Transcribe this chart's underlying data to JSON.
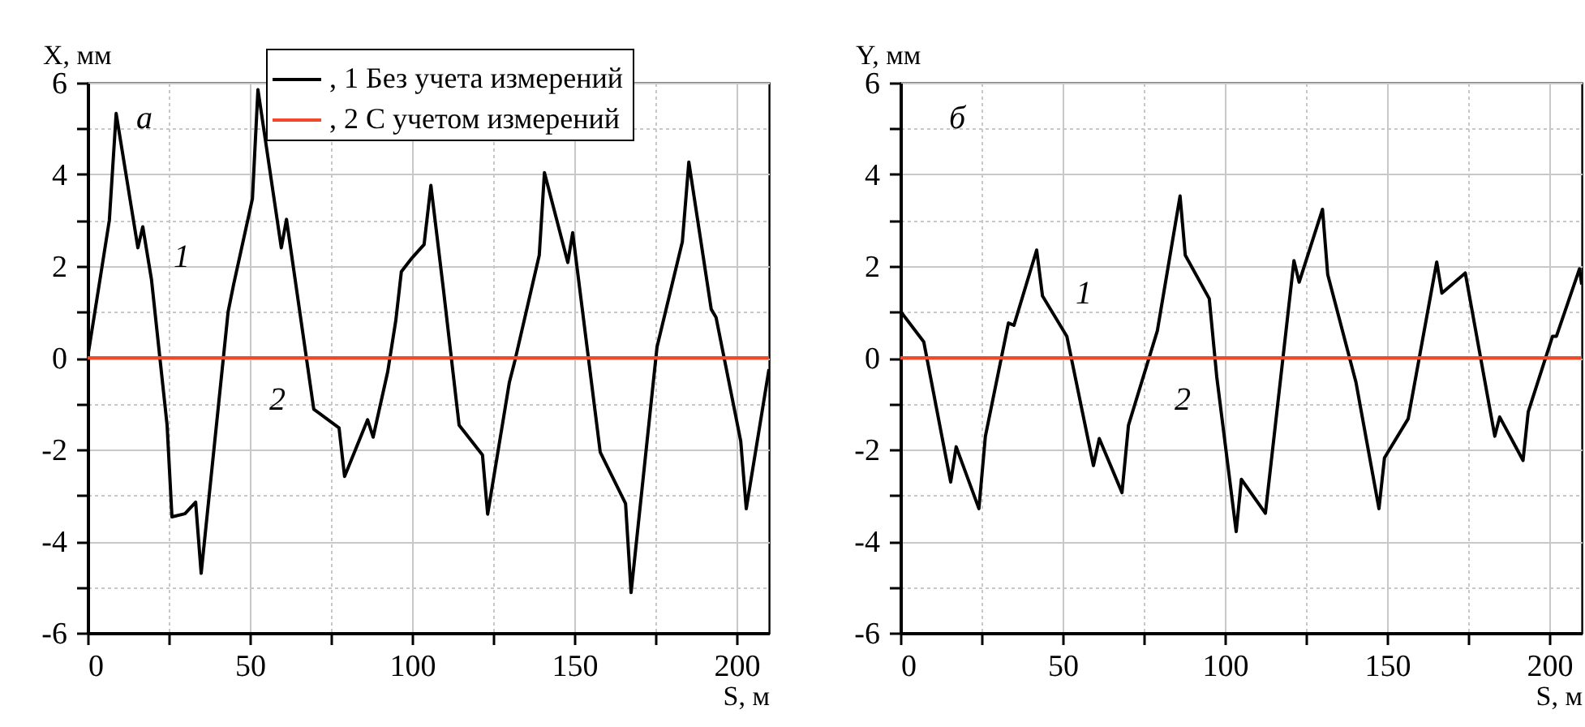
{
  "chart_data": [
    {
      "type": "line",
      "xlabel": "S, м",
      "ylabel": "X, мм",
      "xlim": [
        0,
        210
      ],
      "ylim": [
        -6,
        6
      ],
      "xticks": [
        0,
        {
          "value": 25,
          "label": null
        },
        50,
        {
          "value": 75,
          "label": null
        },
        100,
        {
          "value": 125,
          "label": null
        },
        150,
        {
          "value": 175,
          "label": null
        },
        200
      ],
      "yticks": [
        -6,
        {
          "value": -5,
          "label": null
        },
        -4,
        {
          "value": -3,
          "label": null
        },
        -2,
        {
          "value": -1,
          "label": null
        },
        0,
        {
          "value": 1,
          "label": null
        },
        2,
        {
          "value": 3,
          "label": null
        },
        4,
        {
          "value": 5,
          "label": null
        },
        6
      ],
      "grid": true,
      "legend": "top right",
      "line_style": "solid",
      "annotations": [
        "а",
        {
          "text": "1",
          "x": 20,
          "y": 1.7
        },
        {
          "text": "2",
          "x": 56.5,
          "y": 0
        }
      ],
      "series": [
        {
          "name": ", 1 Без учета измерений",
          "color": "#000000",
          "x": [
            0,
            6.7,
            8.8,
            15.5,
            17,
            19.7,
            24.5,
            26,
            30,
            33.3,
            35,
            43.3,
            45,
            50.8,
            52.5,
            59.7,
            61.3,
            69.7,
            77.5,
            79.2,
            86.3,
            88,
            92.5,
            95,
            96.7,
            100,
            103.7,
            105.8,
            109.7,
            114.5,
            121.7,
            123.3,
            130,
            131.7,
            139.2,
            140.8,
            148,
            149.5,
            158,
            165.8,
            167.5,
            175.5,
            183.3,
            185.3,
            192.2,
            193.7,
            201.3,
            203,
            210
          ],
          "values": [
            0,
            3.0,
            5.33,
            2.4,
            2.86,
            1.7,
            -1.47,
            -3.47,
            -3.4,
            -3.15,
            -4.7,
            1.0,
            1.6,
            3.47,
            5.85,
            2.4,
            3.02,
            -1.12,
            -1.53,
            -2.59,
            -1.35,
            -1.73,
            -0.3,
            0.82,
            1.88,
            2.18,
            2.47,
            3.76,
            1.47,
            -1.47,
            -2.12,
            -3.41,
            -0.53,
            -0.06,
            2.24,
            4.04,
            2.08,
            2.73,
            -2.06,
            -3.18,
            -5.12,
            0.24,
            2.53,
            4.27,
            1.06,
            0.88,
            -1.82,
            -3.29,
            -0.25
          ]
        },
        {
          "name": ", 2 С учетом  измерений",
          "color": "#f04a2a",
          "x": [
            0,
            210
          ],
          "values": [
            0,
            0
          ]
        }
      ]
    },
    {
      "type": "line",
      "xlabel": "S, м",
      "ylabel": "Y, мм",
      "xlim": [
        0,
        210
      ],
      "ylim": [
        -6,
        6
      ],
      "xticks": [
        0,
        {
          "value": 25,
          "label": null
        },
        50,
        {
          "value": 75,
          "label": null
        },
        100,
        {
          "value": 125,
          "label": null
        },
        150,
        {
          "value": 175,
          "label": null
        },
        200
      ],
      "yticks": [
        -6,
        {
          "value": -5,
          "label": null
        },
        -4,
        {
          "value": -3,
          "label": null
        },
        -2,
        {
          "value": -1,
          "label": null
        },
        0,
        {
          "value": 1,
          "label": null
        },
        2,
        {
          "value": 3,
          "label": null
        },
        4,
        {
          "value": 5,
          "label": null
        },
        6
      ],
      "grid": true,
      "line_style": "solid",
      "annotations": [
        "б",
        {
          "text": "1",
          "x": 47.5,
          "y": 0.9
        },
        {
          "text": "2",
          "x": 85,
          "y": 0
        }
      ],
      "series": [
        {
          "color": "#000000",
          "x": [
            0,
            7.2,
            15.5,
            17.2,
            24.2,
            26.2,
            33.3,
            35,
            42,
            43.8,
            51.3,
            59.5,
            61.3,
            68.3,
            70.3,
            79.2,
            86.2,
            87.8,
            95.2,
            97.5,
            103.5,
            105.1,
            112.5,
            121.3,
            122.9,
            130.1,
            131.7,
            140.4,
            147.5,
            149.2,
            156.5,
            165.3,
            166.9,
            174.1,
            183.2,
            184.7,
            191.9,
            193.5,
            201,
            202.2,
            209.3,
            210
          ],
          "values": [
            1.02,
            0.35,
            -2.71,
            -1.94,
            -3.29,
            -1.71,
            0.76,
            0.71,
            2.35,
            1.35,
            0.47,
            -2.35,
            -1.76,
            -2.94,
            -1.47,
            0.59,
            3.53,
            2.24,
            1.29,
            -0.41,
            -3.79,
            -2.65,
            -3.39,
            2.12,
            1.65,
            3.24,
            1.82,
            -0.53,
            -3.29,
            -2.18,
            -1.33,
            2.09,
            1.41,
            1.85,
            -1.71,
            -1.29,
            -2.24,
            -1.18,
            0.47,
            0.47,
            1.94,
            1.6
          ]
        },
        {
          "color": "#f04a2a",
          "x": [
            0,
            210
          ],
          "values": [
            0,
            0
          ]
        }
      ]
    }
  ]
}
